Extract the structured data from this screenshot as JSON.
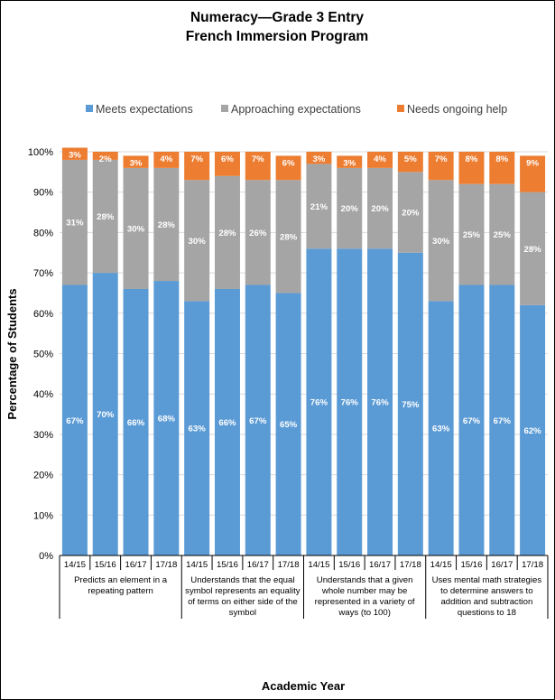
{
  "chart_data": {
    "type": "bar",
    "stacked": true,
    "title": [
      "Numeracy—Grade 3 Entry",
      "French Immersion Program"
    ],
    "xlabel": "Academic Year",
    "ylabel": "Percentage of Students",
    "ylim": [
      0,
      100
    ],
    "yticks": [
      "0%",
      "10%",
      "20%",
      "30%",
      "40%",
      "50%",
      "60%",
      "70%",
      "80%",
      "90%",
      "100%"
    ],
    "legend_position": "top",
    "categories": [
      "14/15",
      "15/16",
      "16/17",
      "17/18",
      "14/15",
      "15/16",
      "16/17",
      "17/18",
      "14/15",
      "15/16",
      "16/17",
      "17/18",
      "14/15",
      "15/16",
      "16/17",
      "17/18"
    ],
    "groups": [
      {
        "lines": [
          "Predicts an element in a",
          "repeating pattern"
        ]
      },
      {
        "lines": [
          "Understands that the equal",
          "symbol represents an equality",
          "of terms on either side of the",
          "symbol"
        ]
      },
      {
        "lines": [
          "Understands that a given",
          "whole number may be",
          "represented in a variety of",
          "ways (to 100)"
        ]
      },
      {
        "lines": [
          "Uses mental math strategies",
          "to determine answers to",
          "addition and subtraction",
          "questions to 18"
        ]
      }
    ],
    "series": [
      {
        "name": "Meets expectations",
        "color": "#5B9BD5",
        "values": [
          67,
          70,
          66,
          68,
          63,
          66,
          67,
          65,
          76,
          76,
          76,
          75,
          63,
          67,
          67,
          62
        ],
        "labels": [
          "67%",
          "70%",
          "66%",
          "68%",
          "63%",
          "66%",
          "67%",
          "65%",
          "76%",
          "76%",
          "76%",
          "75%",
          "63%",
          "67%",
          "67%",
          "62%"
        ]
      },
      {
        "name": "Approaching expectations",
        "color": "#A5A5A5",
        "values": [
          31,
          28,
          30,
          28,
          30,
          28,
          26,
          28,
          21,
          20,
          20,
          20,
          30,
          25,
          25,
          28
        ],
        "labels": [
          "31%",
          "28%",
          "30%",
          "28%",
          "30%",
          "28%",
          "26%",
          "28%",
          "21%",
          "20%",
          "20%",
          "20%",
          "30%",
          "25%",
          "25%",
          "28%"
        ]
      },
      {
        "name": "Needs ongoing help",
        "color": "#ED7D31",
        "values": [
          3,
          2,
          3,
          4,
          7,
          6,
          7,
          6,
          3,
          3,
          4,
          5,
          7,
          8,
          8,
          9
        ],
        "labels": [
          "3%",
          "2%",
          "3%",
          "4%",
          "7%",
          "6%",
          "7%",
          "6%",
          "3%",
          "3%",
          "4%",
          "5%",
          "7%",
          "8%",
          "8%",
          "9%"
        ]
      }
    ]
  }
}
